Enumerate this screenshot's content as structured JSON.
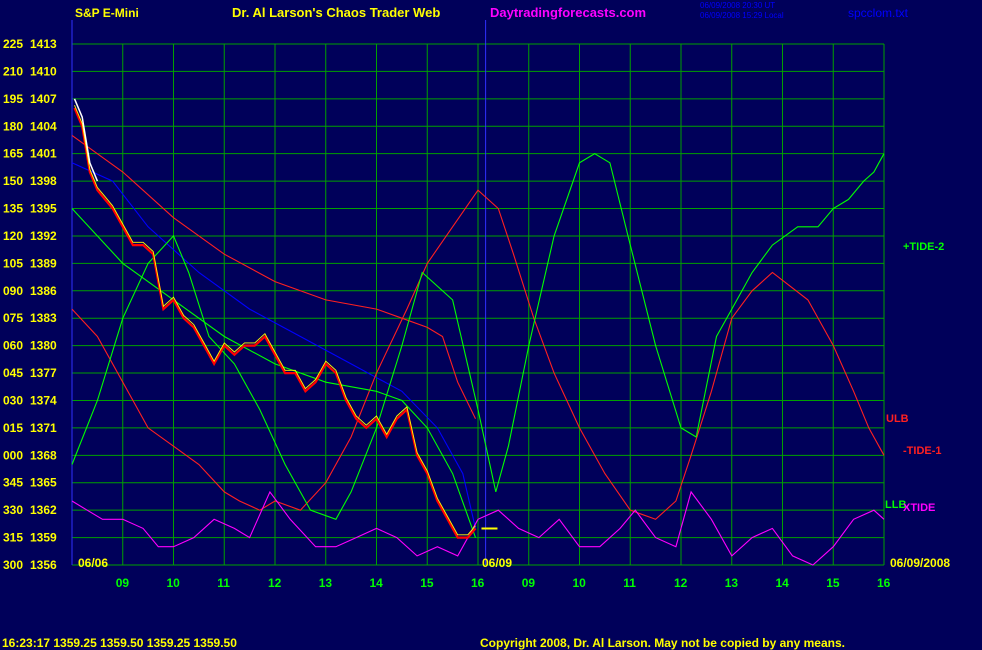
{
  "header": {
    "left_title": "S&P E-Mini",
    "center_title": "Dr. Al Larson's Chaos Trader Web",
    "site": "Daytradingforecasts.com",
    "timestamp_1": "06/09/2008 20:30 UT",
    "timestamp_2": "06/09/2008 15:29 Local",
    "file": "spcclom.txt"
  },
  "footer": {
    "quote": "16:23:17  1359.25  1359.50  1359.25  1359.50",
    "copyright": "Copyright 2008, Dr. Al Larson. May not be copied by any means."
  },
  "colors": {
    "background": "#00005a",
    "grid": "#00a000",
    "price": "#ff0000",
    "price_upper": "#ffffff",
    "moving_avg": "#ffff00",
    "tide2": "#00ff00",
    "tide1": "#ff2020",
    "ulb": "#ff2020",
    "llb": "#00ff00",
    "xtide": "#ff00ff",
    "blue_curve": "#0000ff",
    "axis_text": "#ffff00",
    "time_text": "#00ff00"
  },
  "chart_data": {
    "type": "line",
    "title": "S&P E-Mini",
    "x_tick_labels": [
      "09",
      "10",
      "11",
      "12",
      "13",
      "14",
      "15",
      "16",
      "09",
      "10",
      "11",
      "12",
      "13",
      "14",
      "15",
      "16"
    ],
    "date_labels": [
      "06/06",
      "06/09",
      "06/09/2008"
    ],
    "y_price_ticks": [
      1356,
      1359,
      1362,
      1365,
      1368,
      1371,
      1374,
      1377,
      1380,
      1383,
      1386,
      1389,
      1392,
      1395,
      1398,
      1401,
      1404,
      1407,
      1410,
      1413
    ],
    "y_index_ticks": [
      "300",
      "315",
      "330",
      "345",
      "000",
      "015",
      "030",
      "045",
      "060",
      "075",
      "090",
      "105",
      "120",
      "135",
      "150",
      "165",
      "180",
      "195",
      "210",
      "225"
    ],
    "ylim": [
      1356,
      1413
    ],
    "xlim": [
      0,
      16
    ],
    "grid": true,
    "series": [
      {
        "name": "price",
        "x": [
          0.05,
          0.2,
          0.35,
          0.5,
          0.65,
          0.8,
          1.0,
          1.2,
          1.4,
          1.6,
          1.8,
          2.0,
          2.2,
          2.4,
          2.6,
          2.8,
          3.0,
          3.2,
          3.4,
          3.6,
          3.8,
          4.0,
          4.2,
          4.4,
          4.6,
          4.8,
          5.0,
          5.2,
          5.4,
          5.6,
          5.8,
          6.0,
          6.2,
          6.4,
          6.6,
          6.8,
          7.0,
          7.2,
          7.4,
          7.6,
          7.8,
          7.95
        ],
        "y": [
          1406,
          1404,
          1399,
          1397,
          1396,
          1395,
          1393,
          1391,
          1391,
          1390,
          1384,
          1385,
          1383,
          1382,
          1380,
          1378,
          1380,
          1379,
          1380,
          1380,
          1381,
          1379,
          1377,
          1377,
          1375,
          1376,
          1378,
          1377,
          1374,
          1372,
          1371,
          1372,
          1370,
          1372,
          1373,
          1368,
          1366,
          1363,
          1361,
          1359,
          1359,
          1360
        ]
      },
      {
        "name": "+TIDE-2",
        "x": [
          0,
          0.5,
          1.0,
          1.5,
          2.0,
          2.3,
          2.7,
          3.2,
          3.7,
          4.2,
          4.7,
          5.2,
          5.5,
          6.0,
          6.5,
          6.9,
          7.5,
          8.0,
          8.35,
          8.6,
          9.0,
          9.5,
          10.0,
          10.3,
          10.6,
          11.0,
          11.5,
          12.0,
          12.3,
          12.7,
          13.0,
          13.4,
          13.8,
          14.3,
          14.7,
          15.0,
          15.3,
          15.6,
          15.8,
          15.9,
          16.0
        ],
        "y": [
          1367,
          1374,
          1383,
          1389,
          1392,
          1388,
          1381,
          1378,
          1373,
          1367,
          1362,
          1361,
          1364,
          1371,
          1380,
          1388,
          1385,
          1373,
          1364,
          1369,
          1380,
          1392,
          1400,
          1401,
          1400,
          1391,
          1380,
          1371,
          1370,
          1381,
          1384,
          1388,
          1391,
          1393,
          1393,
          1395,
          1396,
          1398,
          1399,
          1400,
          1401
        ]
      },
      {
        "name": "-TIDE-1",
        "x": [
          0,
          0.5,
          1.0,
          1.5,
          2.0,
          2.5,
          3.0,
          3.3,
          3.7,
          4.0,
          4.5,
          5.0,
          5.5,
          6.0,
          6.6,
          7.0,
          7.5,
          8.0,
          8.4,
          8.7,
          9.1,
          9.5,
          10.0,
          10.5,
          11.0,
          11.5,
          11.9,
          12.2,
          12.6,
          13.0,
          13.4,
          13.8,
          14.5,
          15.0,
          15.4,
          15.7,
          16.0
        ],
        "y": [
          1384,
          1381,
          1376,
          1371,
          1369,
          1367,
          1364,
          1363,
          1362,
          1363,
          1362,
          1365,
          1370,
          1377,
          1384,
          1389,
          1393,
          1397,
          1395,
          1390,
          1383,
          1377,
          1371,
          1366,
          1362,
          1361,
          1363,
          1368,
          1375,
          1383,
          1386,
          1388,
          1385,
          1380,
          1375,
          1371,
          1368
        ]
      },
      {
        "name": "ULB",
        "x": [
          0,
          1.0,
          2.0,
          3.0,
          4.0,
          5.0,
          6.0,
          6.5,
          7.0,
          7.3,
          7.6,
          7.95
        ],
        "y": [
          1403,
          1399,
          1394,
          1390,
          1387,
          1385,
          1384,
          1383,
          1382,
          1381,
          1376,
          1372
        ]
      },
      {
        "name": "LLB",
        "x": [
          0,
          1.0,
          2.0,
          3.0,
          4.0,
          5.0,
          6.0,
          6.5,
          7.0,
          7.5,
          7.95
        ],
        "y": [
          1395,
          1389,
          1385,
          1381,
          1378,
          1376,
          1375,
          1374,
          1371,
          1366,
          1359
        ]
      },
      {
        "name": "blue",
        "x": [
          0,
          0.8,
          1.5,
          2.5,
          3.5,
          4.5,
          5.5,
          6.5,
          7.2,
          7.7,
          7.95
        ],
        "y": [
          1400,
          1398,
          1393,
          1388,
          1384,
          1381,
          1378,
          1375,
          1371,
          1366,
          1360
        ]
      },
      {
        "name": "XTIDE",
        "x": [
          0,
          0.3,
          0.6,
          1.0,
          1.4,
          1.7,
          2.0,
          2.4,
          2.8,
          3.2,
          3.5,
          3.9,
          4.3,
          4.8,
          5.2,
          5.6,
          6.0,
          6.4,
          6.8,
          7.2,
          7.6,
          8.0,
          8.4,
          8.8,
          9.2,
          9.6,
          10.0,
          10.4,
          10.8,
          11.1,
          11.5,
          11.9,
          12.2,
          12.6,
          13.0,
          13.4,
          13.8,
          14.2,
          14.6,
          15.0,
          15.4,
          15.8,
          16.0
        ],
        "y": [
          1363,
          1362,
          1361,
          1361,
          1360,
          1358,
          1358,
          1359,
          1361,
          1360,
          1359,
          1364,
          1361,
          1358,
          1358,
          1359,
          1360,
          1359,
          1357,
          1358,
          1357,
          1361,
          1362,
          1360,
          1359,
          1361,
          1358,
          1358,
          1360,
          1362,
          1359,
          1358,
          1364,
          1361,
          1357,
          1359,
          1360,
          1357,
          1356,
          1358,
          1361,
          1362,
          1361
        ]
      }
    ],
    "annotations": [
      "+TIDE-2",
      "ULB",
      "-TIDE-1",
      "LLB",
      "XTIDE"
    ]
  }
}
